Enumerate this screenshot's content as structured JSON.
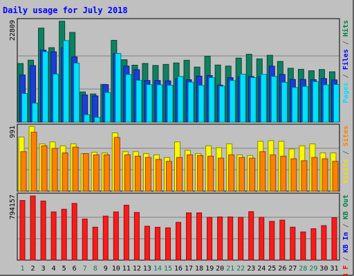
{
  "chart_data": {
    "type": "bar",
    "title": "Daily usage for July 2018",
    "categories": [
      "1",
      "2",
      "3",
      "4",
      "5",
      "6",
      "7",
      "8",
      "9",
      "10",
      "11",
      "12",
      "13",
      "14",
      "15",
      "16",
      "17",
      "18",
      "19",
      "20",
      "21",
      "22",
      "23",
      "24",
      "25",
      "26",
      "27",
      "28",
      "29",
      "30",
      "31"
    ],
    "weekend_days": [
      "1",
      "7",
      "8",
      "14",
      "15",
      "21",
      "22",
      "28",
      "29"
    ],
    "panels": [
      {
        "name": "hits-files-pages",
        "ymax_label": "22809",
        "ymax": 22809,
        "right_label": [
          {
            "text": "Pages",
            "color": "#00e0ff"
          },
          {
            "text": " / ",
            "color": "#666666"
          },
          {
            "text": "Files",
            "color": "#0000ff"
          },
          {
            "text": " / ",
            "color": "#666666"
          },
          {
            "text": "Hits",
            "color": "#008040"
          }
        ],
        "series": [
          {
            "name": "Hits",
            "color": "#108060",
            "values": [
              13270,
              14040,
              21290,
              16860,
              22850,
              20310,
              6840,
              6380,
              8540,
              18520,
              14130,
              12890,
              13290,
              12830,
              13070,
              13400,
              14010,
              12470,
              14900,
              12930,
              12700,
              14500,
              15370,
              14320,
              15140,
              13740,
              12200,
              11960,
              11630,
              11910,
              11400
            ]
          },
          {
            "name": "Files",
            "color": "#1a3ed6",
            "values": [
              10670,
              12790,
              16310,
              15930,
              16870,
              14760,
              6160,
              5950,
              8500,
              15550,
              12700,
              11870,
              9430,
              9440,
              9350,
              9840,
              9600,
              10420,
              10560,
              8390,
              10060,
              10290,
              10330,
              10360,
              12670,
              10790,
              9680,
              9670,
              9610,
              9870,
              9570
            ]
          },
          {
            "name": "Pages",
            "color": "#00e0ff",
            "values": [
              6470,
              4300,
              15920,
              10860,
              18460,
              13360,
              1680,
              1090,
              6710,
              15550,
              10790,
              9470,
              8480,
              8460,
              8340,
              10340,
              9040,
              8330,
              10060,
              8150,
              9420,
              10870,
              10080,
              10820,
              10340,
              9020,
              7840,
              8080,
              9170,
              8440,
              8520
            ]
          }
        ]
      },
      {
        "name": "visits-sites",
        "ymax_label": "991",
        "ymax": 991,
        "right_label": [
          {
            "text": "Visits",
            "color": "#f0e000"
          },
          {
            "text": " / ",
            "color": "#666666"
          },
          {
            "text": "Sites",
            "color": "#ff8000"
          }
        ],
        "series": [
          {
            "name": "Visits",
            "color": "#f8f800",
            "values": [
              835,
              1000,
              730,
              760,
              700,
              730,
              580,
              600,
              590,
              900,
              610,
              610,
              580,
              560,
              520,
              760,
              630,
              580,
              700,
              670,
              730,
              560,
              550,
              770,
              780,
              770,
              650,
              700,
              730,
              590,
              590
            ]
          },
          {
            "name": "Sites",
            "color": "#ff8000",
            "values": [
              610,
              910,
              700,
              660,
              590,
              680,
              580,
              560,
              560,
              830,
              560,
              540,
              520,
              490,
              460,
              520,
              560,
              550,
              540,
              510,
              560,
              520,
              510,
              610,
              560,
              540,
              500,
              470,
              520,
              500,
              460
            ]
          }
        ]
      },
      {
        "name": "kbytes",
        "ymax_label": "794157",
        "ymax": 794157,
        "right_label": [
          {
            "text": "KB F",
            "color": "#ff0000"
          },
          {
            "text": " / ",
            "color": "#666666"
          },
          {
            "text": "KB In",
            "color": "#0000ff"
          },
          {
            "text": " / ",
            "color": "#666666"
          },
          {
            "text": "KB Out",
            "color": "#008040"
          }
        ],
        "series": [
          {
            "name": "KB F",
            "color": "#ff1a1a",
            "values": [
              738000,
              794000,
              732000,
              597000,
              630000,
              702000,
              509000,
              408000,
              545000,
              597000,
              680000,
              590000,
              420000,
              407000,
              400000,
              468000,
              585000,
              585000,
              530000,
              535000,
              535000,
              530000,
              600000,
              529000,
              480000,
              495000,
              408000,
              349000,
              389000,
              427000,
              525000
            ]
          }
        ]
      }
    ]
  }
}
